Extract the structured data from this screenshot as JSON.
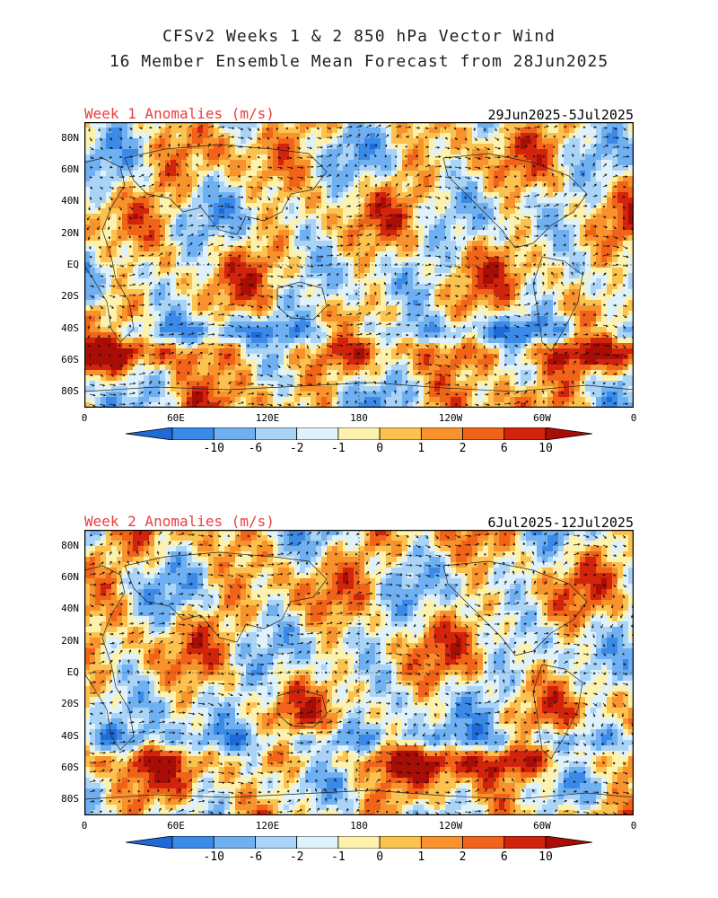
{
  "header": {
    "title_line1": "CFSv2 Weeks 1 & 2 850 hPa Vector Wind",
    "title_line2": "16 Member Ensemble Mean Forecast from 28Jun2025"
  },
  "panels": [
    {
      "label": "Week 1 Anomalies (m/s)",
      "dates": "29Jun2025-5Jul2025"
    },
    {
      "label": "Week 2 Anomalies (m/s)",
      "dates": "6Jul2025-12Jul2025"
    }
  ],
  "map_axes": {
    "lat_ticks": [
      "80N",
      "60N",
      "40N",
      "20N",
      "EQ",
      "20S",
      "40S",
      "60S",
      "80S"
    ],
    "lon_ticks": [
      "0",
      "60E",
      "120E",
      "180",
      "120W",
      "60W",
      "0"
    ],
    "lat_range": [
      -90,
      90
    ],
    "lon_range": [
      0,
      360
    ]
  },
  "colorbar": {
    "labels": [
      "-10",
      "-6",
      "-2",
      "-1",
      "0",
      "1",
      "2",
      "6",
      "10"
    ],
    "colors": [
      "#1e6ad8",
      "#3b8ae8",
      "#6fb0f2",
      "#a9d4f7",
      "#dff2fb",
      "#fdf2ad",
      "#fcc24f",
      "#f8922d",
      "#f06318",
      "#d2230c",
      "#a80e05"
    ]
  }
}
